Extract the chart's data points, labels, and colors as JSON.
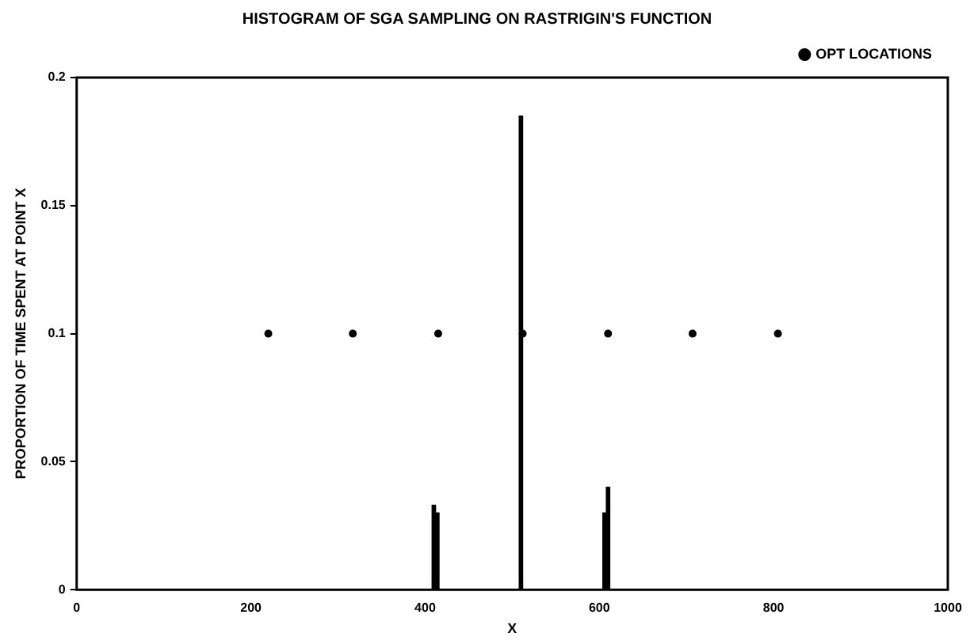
{
  "chart_data": {
    "type": "histogram",
    "title": "HISTOGRAM OF SGA SAMPLING ON RASTRIGIN'S FUNCTION",
    "xlabel": "X",
    "ylabel": "PROPORTION OF TIME SPENT AT POINT X",
    "color": "#000000",
    "bins": [
      404,
      408,
      412,
      416,
      420,
      424,
      428,
      432,
      436,
      440,
      444,
      448,
      452,
      456,
      460,
      464,
      468,
      472,
      476,
      480,
      484,
      488,
      492,
      496,
      500,
      504,
      508,
      512,
      516,
      520,
      524,
      528,
      532,
      536,
      540,
      544,
      548,
      552,
      556,
      560,
      564,
      568,
      572,
      576,
      580,
      584,
      588,
      592,
      596,
      600,
      604,
      608,
      612,
      616
    ],
    "values": [
      0,
      0.033,
      0.03,
      0,
      0,
      0,
      0,
      0,
      0,
      0,
      0,
      0,
      0,
      0,
      0,
      0,
      0,
      0,
      0,
      0,
      0,
      0,
      0,
      0,
      0,
      0,
      0.185,
      0,
      0,
      0,
      0,
      0,
      0,
      0,
      0,
      0,
      0,
      0,
      0,
      0,
      0,
      0,
      0,
      0,
      0,
      0,
      0,
      0,
      0,
      0,
      0.03,
      0.04,
      0
    ],
    "series": [
      {
        "type": "scatter",
        "name": "OPT LOCATIONS",
        "color": "#000000",
        "x": [
          220,
          317,
          415,
          512,
          610,
          707,
          805
        ],
        "values": [
          0.1,
          0.1,
          0.1,
          0.1,
          0.1,
          0.1,
          0.1
        ]
      }
    ],
    "xlim": [
      0,
      1000
    ],
    "xticks": [
      0,
      200,
      400,
      600,
      800,
      1000
    ],
    "ylim": [
      0,
      0.2
    ],
    "yticks": [
      0,
      0.05,
      0.1,
      0.15,
      0.2
    ],
    "grid": false,
    "legend": "top right",
    "marker": "circle"
  }
}
